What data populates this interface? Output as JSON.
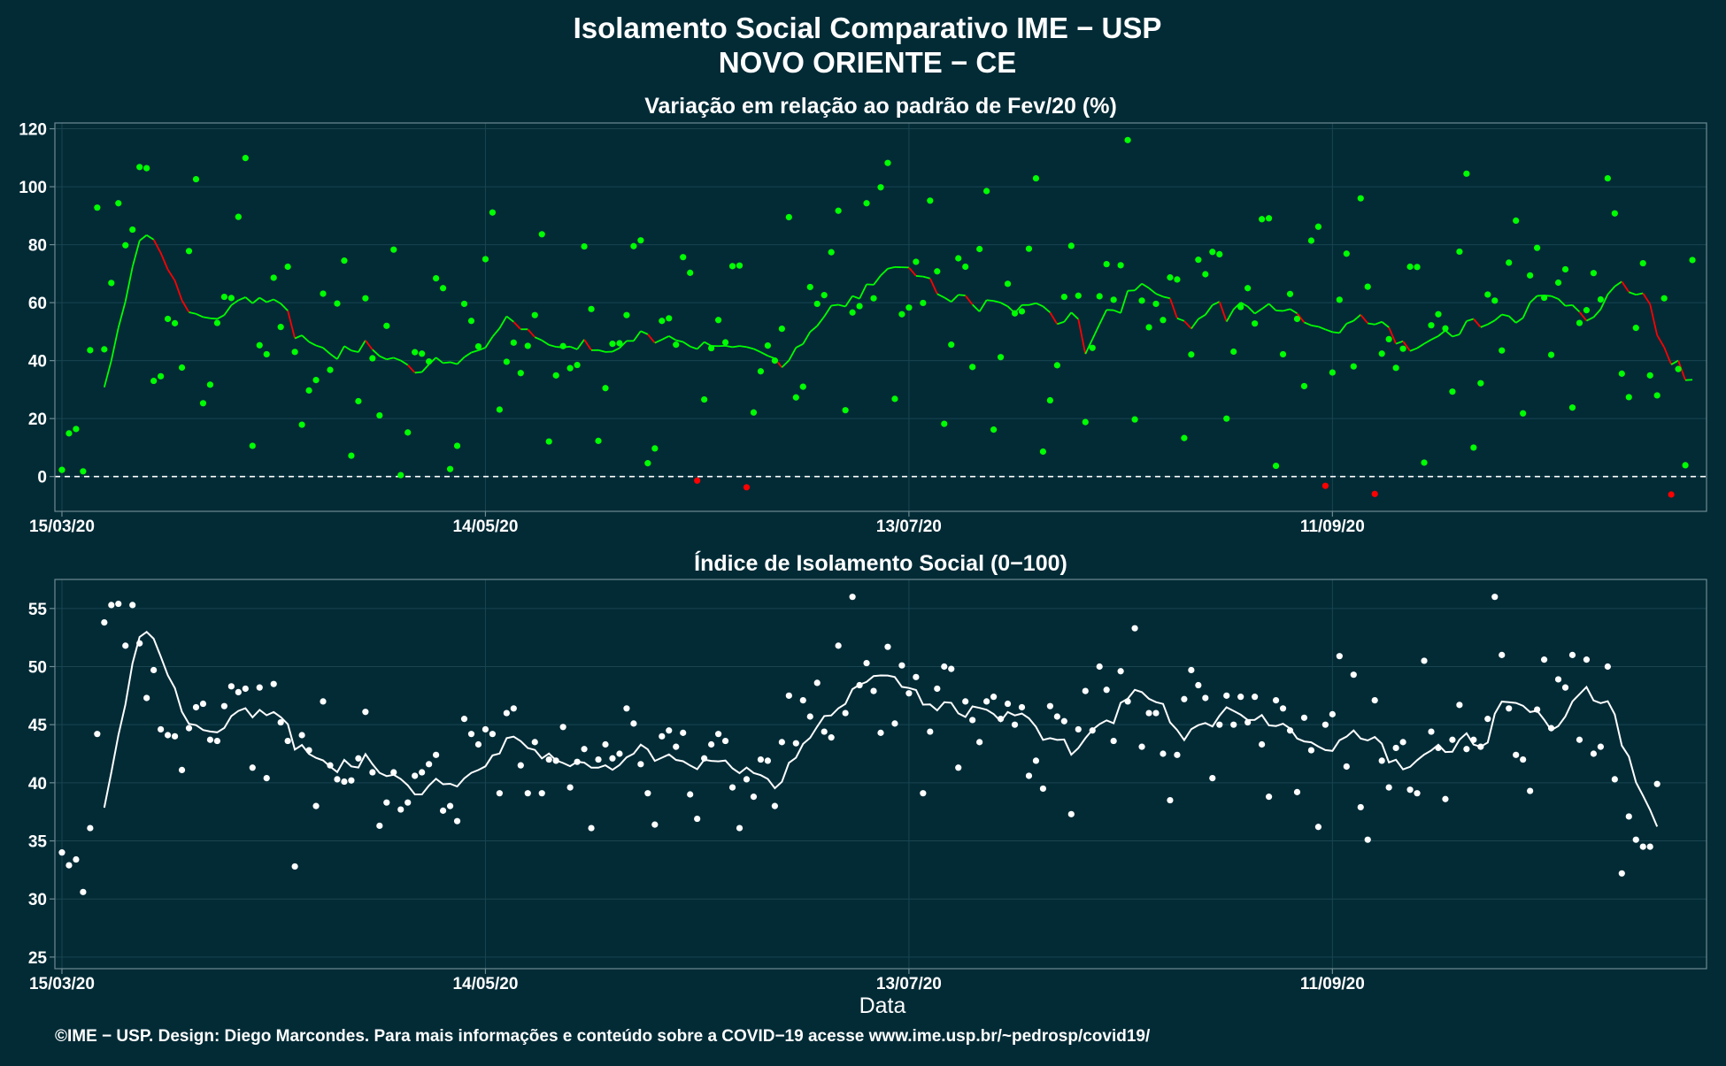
{
  "header": {
    "title": "Isolamento Social Comparativo IME − USP",
    "subtitle": "NOVO ORIENTE − CE"
  },
  "footer": "©IME − USP. Design: Diego Marcondes. Para mais informações e conteúdo sobre a COVID−19 acesse www.ime.usp.br/~pedrosp/covid19/",
  "colors": {
    "background": "#022b36",
    "positive": "#00ff00",
    "negative": "#ff0000",
    "index": "#ffffff",
    "grid": "#1a4550",
    "frame": "#6f8a92"
  },
  "chart_data": [
    {
      "type": "scatter",
      "title": "Variação em relação ao padrão de Fev/20 (%)",
      "xlabel": "",
      "ylabel": "",
      "x_start": "15/03/20",
      "x_end": "16/11/20",
      "x_ticks": [
        "15/03/20",
        "14/05/20",
        "13/07/20",
        "11/09/20"
      ],
      "x_tick_offsets": [
        0,
        60,
        120,
        180
      ],
      "xlim": [
        -1,
        233
      ],
      "ylim": [
        -12,
        122
      ],
      "y_ticks": [
        0,
        20,
        40,
        60,
        80,
        100,
        120
      ],
      "reference_line": 0,
      "grid": true,
      "series": [
        {
          "values": [
            2.3,
            14.9,
            16.4,
            1.8,
            43.6,
            92.8,
            43.9,
            66.8,
            94.3,
            79.8,
            85.2,
            106.8,
            106.4,
            33.0,
            34.6,
            54.4,
            52.9,
            37.6,
            77.8,
            102.6,
            25.3,
            31.7,
            53.0,
            62.0,
            61.6,
            89.6,
            109.9,
            10.6,
            45.3,
            42.2,
            68.6,
            51.6,
            72.4,
            43.0,
            17.9,
            29.7,
            33.3,
            63.1,
            36.8,
            59.7,
            74.5,
            7.2,
            26.0,
            61.5,
            40.8,
            21.1,
            52.0,
            78.3,
            0.5,
            15.2,
            42.9,
            42.4,
            39.7,
            68.4,
            65.0,
            2.6,
            10.6,
            59.6,
            53.7,
            44.9,
            75.0,
            91.1,
            23.1,
            39.6,
            46.2,
            35.7,
            45.1,
            55.7,
            83.6,
            12.1,
            34.9,
            45.0,
            37.4,
            38.5,
            79.4,
            57.8,
            12.3,
            30.5,
            45.8,
            46.0,
            55.7,
            79.5,
            81.5,
            4.6,
            9.7,
            53.7,
            54.6,
            45.5,
            75.7,
            70.3,
            -1.4,
            26.6,
            44.3,
            54.0,
            46.3,
            72.6,
            72.8,
            -3.7,
            22.1,
            36.3,
            45.2,
            40.0,
            51.0,
            89.5,
            27.3,
            31.0,
            65.4,
            59.6,
            62.6,
            77.4,
            91.7,
            22.9,
            56.6,
            58.8,
            94.3,
            61.5,
            99.8,
            108.2,
            26.8,
            56.0,
            58.3,
            74.1,
            59.9,
            95.2,
            70.8,
            18.2,
            45.5,
            75.3,
            72.4,
            37.8,
            78.5,
            98.5,
            16.2,
            41.2,
            66.5,
            56.3,
            57.0,
            78.6,
            102.9,
            8.6,
            26.3,
            38.4,
            62.0,
            79.6,
            62.4,
            18.8,
            44.4,
            62.2,
            73.3,
            61.0,
            72.9,
            116.1,
            19.7,
            60.7,
            51.5,
            59.6,
            54.0,
            68.7,
            68.0,
            13.3,
            42.1,
            74.8,
            69.8,
            77.5,
            76.7,
            20.0,
            43.1,
            58.5,
            65.0,
            52.8,
            88.8,
            89.1,
            3.7,
            42.2,
            63.0,
            54.4,
            31.2,
            81.4,
            86.2,
            -3.2,
            35.9,
            61.0,
            76.9,
            38.0,
            96.0,
            65.5,
            -6.0,
            42.4,
            47.4,
            37.5,
            44.1,
            72.4,
            72.3,
            4.8,
            52.2,
            56.0,
            51.1,
            29.3,
            77.6,
            104.5,
            10.0,
            32.2,
            62.8,
            60.7,
            43.5,
            73.8,
            88.3,
            21.8,
            69.4,
            78.9,
            61.7,
            42.0,
            66.9,
            71.5,
            23.8,
            53.0,
            57.4,
            70.2,
            61.1,
            102.9,
            90.8,
            35.5,
            27.4,
            51.3,
            73.6,
            34.9,
            28.0,
            61.5,
            -6.2,
            37.1,
            3.9,
            74.7
          ]
        }
      ]
    },
    {
      "type": "scatter",
      "title": "Índice de Isolamento Social (0−100)",
      "xlabel": "Data",
      "ylabel": "",
      "x_start": "15/03/20",
      "x_end": "16/11/20",
      "x_ticks": [
        "15/03/20",
        "14/05/20",
        "13/07/20",
        "11/09/20"
      ],
      "x_tick_offsets": [
        0,
        60,
        120,
        180
      ],
      "xlim": [
        -1,
        233
      ],
      "ylim": [
        24,
        57.5
      ],
      "y_ticks": [
        25,
        30,
        35,
        40,
        45,
        50,
        55
      ],
      "grid": true,
      "series": [
        {
          "values": [
            34.0,
            32.9,
            33.4,
            30.6,
            36.1,
            44.2,
            53.8,
            55.3,
            55.4,
            51.8,
            55.3,
            52.0,
            47.3,
            49.7,
            44.6,
            44.1,
            44.0,
            41.1,
            44.7,
            46.5,
            46.8,
            43.7,
            43.6,
            46.6,
            48.3,
            47.8,
            48.1,
            41.3,
            48.2,
            40.4,
            48.5,
            45.2,
            43.6,
            32.8,
            44.1,
            42.8,
            38.0,
            47.0,
            41.5,
            40.3,
            40.1,
            40.2,
            42.1,
            46.1,
            40.9,
            36.3,
            38.3,
            40.9,
            37.7,
            38.3,
            40.6,
            40.9,
            41.6,
            42.4,
            37.6,
            38.0,
            36.7,
            45.5,
            44.2,
            43.3,
            44.6,
            44.2,
            39.1,
            46.0,
            46.4,
            41.5,
            39.1,
            43.5,
            39.1,
            42.0,
            41.9,
            44.8,
            39.6,
            41.8,
            42.9,
            36.1,
            42.0,
            43.3,
            42.1,
            42.5,
            46.4,
            45.1,
            41.6,
            39.1,
            36.4,
            44.0,
            44.5,
            43.1,
            44.3,
            39.0,
            36.9,
            42.1,
            43.3,
            44.2,
            43.6,
            39.6,
            36.1,
            40.3,
            38.8,
            42.0,
            41.9,
            38.0,
            43.5,
            47.5,
            43.4,
            47.1,
            45.7,
            48.6,
            44.4,
            43.9,
            51.8,
            46.0,
            56.0,
            48.4,
            50.3,
            47.9,
            44.3,
            51.7,
            45.1,
            50.1,
            47.7,
            49.1,
            39.1,
            44.4,
            48.1,
            50.0,
            49.8,
            41.3,
            47.0,
            45.4,
            43.5,
            47.0,
            47.4,
            45.5,
            46.8,
            45.0,
            46.5,
            40.6,
            41.9,
            39.5,
            46.6,
            45.7,
            45.3,
            37.3,
            44.6,
            47.9,
            44.5,
            50.0,
            48.0,
            43.6,
            49.6,
            47.0,
            53.3,
            43.1,
            46.0,
            46.0,
            42.5,
            38.5,
            42.4,
            47.2,
            49.7,
            48.4,
            47.3,
            40.4,
            45.0,
            47.5,
            45.0,
            47.4,
            45.2,
            47.4,
            43.3,
            38.8,
            47.1,
            46.4,
            44.5,
            39.2,
            45.6,
            42.8,
            36.2,
            45.0,
            45.9,
            50.9,
            41.4,
            49.3,
            37.9,
            35.1,
            47.1,
            41.9,
            39.6,
            43.0,
            43.5,
            39.4,
            39.1,
            50.5,
            44.4,
            43.0,
            38.6,
            43.7,
            46.7,
            42.9,
            43.7,
            43.1,
            45.5,
            56.0,
            51.0,
            46.4,
            42.4,
            42.0,
            39.3,
            46.3,
            50.6,
            44.7,
            48.9,
            48.2,
            51.0,
            43.7,
            50.6,
            42.5,
            43.1,
            50.0,
            40.3,
            32.2,
            37.1,
            35.1,
            34.5,
            34.5,
            39.9
          ]
        }
      ]
    }
  ]
}
